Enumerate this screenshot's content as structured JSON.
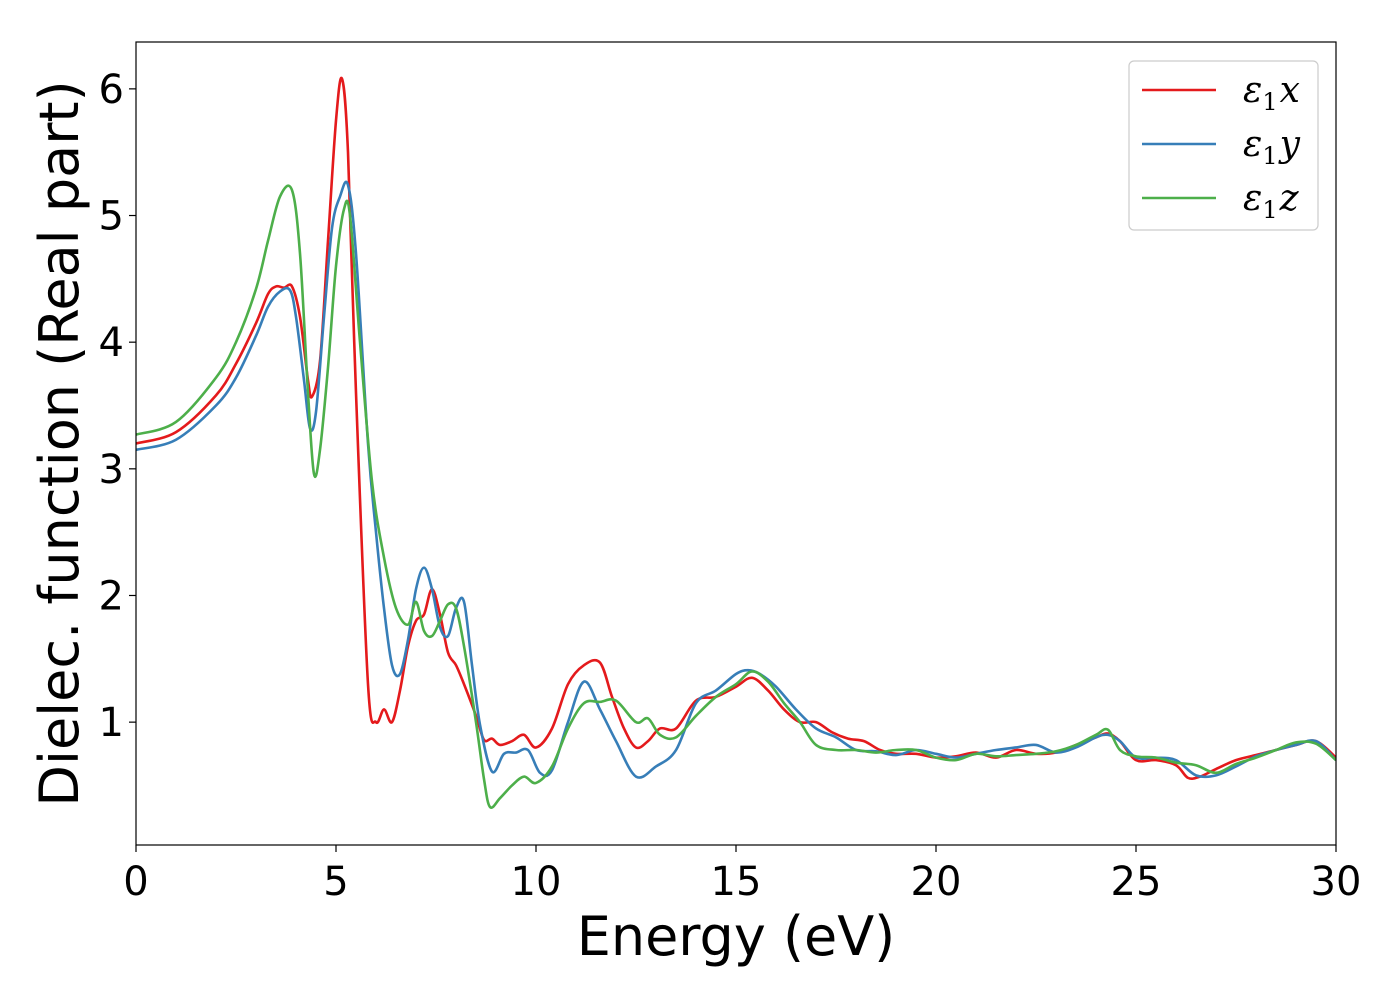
{
  "chart_data": {
    "type": "line",
    "title": "",
    "xlabel": "Energy (eV)",
    "ylabel": "Dielec. function (Real part)",
    "xlim": [
      0,
      30
    ],
    "ylim": [
      0.03,
      6.37
    ],
    "xticks": [
      0,
      5,
      10,
      15,
      20,
      25,
      30
    ],
    "yticks": [
      1,
      2,
      3,
      4,
      5,
      6
    ],
    "grid": false,
    "legend_position": "top-right",
    "series": [
      {
        "name": "ε₁x",
        "legend_base": "ε",
        "legend_sub": "1",
        "legend_var": "x",
        "color": "#e41a1c",
        "x": [
          0,
          1,
          2,
          2.5,
          3,
          3.3,
          3.5,
          3.7,
          3.9,
          4.1,
          4.3,
          4.4,
          4.6,
          4.8,
          5.0,
          5.15,
          5.3,
          5.5,
          5.8,
          6.0,
          6.2,
          6.4,
          6.6,
          6.8,
          7.0,
          7.2,
          7.4,
          7.6,
          7.8,
          8.0,
          8.2,
          8.5,
          8.7,
          8.9,
          9.1,
          9.4,
          9.7,
          10.0,
          10.4,
          10.8,
          11.2,
          11.6,
          11.9,
          12.2,
          12.5,
          12.8,
          13.1,
          13.5,
          14.0,
          14.5,
          15.0,
          15.4,
          15.8,
          16.2,
          16.6,
          17.0,
          17.4,
          17.8,
          18.2,
          18.6,
          19.0,
          19.5,
          20.0,
          20.5,
          21.0,
          21.5,
          22.0,
          22.5,
          23.0,
          23.5,
          24.0,
          24.3,
          24.6,
          25.0,
          25.5,
          26.0,
          26.3,
          26.6,
          27.0,
          27.5,
          28.0,
          28.5,
          29.0,
          29.5,
          30.0
        ],
        "y": [
          3.2,
          3.29,
          3.58,
          3.83,
          4.15,
          4.38,
          4.44,
          4.43,
          4.44,
          4.2,
          3.7,
          3.57,
          3.85,
          4.8,
          5.75,
          6.08,
          5.5,
          3.6,
          1.3,
          1.0,
          1.1,
          1.0,
          1.25,
          1.6,
          1.8,
          1.85,
          2.05,
          1.85,
          1.55,
          1.45,
          1.3,
          1.05,
          0.86,
          0.87,
          0.82,
          0.85,
          0.9,
          0.8,
          0.95,
          1.3,
          1.45,
          1.47,
          1.2,
          0.95,
          0.8,
          0.85,
          0.95,
          0.95,
          1.17,
          1.2,
          1.28,
          1.35,
          1.25,
          1.1,
          1.0,
          1.0,
          0.92,
          0.87,
          0.85,
          0.78,
          0.75,
          0.75,
          0.72,
          0.73,
          0.76,
          0.72,
          0.78,
          0.75,
          0.76,
          0.82,
          0.88,
          0.91,
          0.85,
          0.7,
          0.7,
          0.66,
          0.56,
          0.57,
          0.63,
          0.7,
          0.74,
          0.78,
          0.82,
          0.85,
          0.72
        ]
      },
      {
        "name": "ε₁y",
        "legend_base": "ε",
        "legend_sub": "1",
        "legend_var": "y",
        "color": "#377eb8",
        "x": [
          0,
          1,
          2,
          2.5,
          3,
          3.3,
          3.6,
          3.85,
          4.0,
          4.2,
          4.35,
          4.5,
          4.7,
          4.9,
          5.1,
          5.3,
          5.5,
          5.8,
          6.0,
          6.2,
          6.4,
          6.6,
          6.8,
          7.0,
          7.2,
          7.4,
          7.6,
          7.8,
          8.0,
          8.2,
          8.4,
          8.6,
          8.9,
          9.2,
          9.5,
          9.8,
          10.1,
          10.4,
          10.8,
          11.2,
          11.6,
          12.0,
          12.5,
          13.0,
          13.5,
          14.0,
          14.5,
          15.0,
          15.3,
          15.6,
          16.0,
          16.5,
          17.0,
          17.5,
          18.0,
          18.5,
          19.0,
          19.5,
          20.0,
          20.5,
          21.0,
          21.5,
          22.0,
          22.5,
          23.0,
          23.5,
          24.0,
          24.3,
          24.6,
          25.0,
          25.5,
          26.0,
          26.5,
          27.0,
          27.5,
          28.0,
          28.5,
          29.0,
          29.5,
          30.0
        ],
        "y": [
          3.15,
          3.23,
          3.5,
          3.72,
          4.05,
          4.28,
          4.4,
          4.41,
          4.2,
          3.7,
          3.32,
          3.45,
          4.2,
          4.9,
          5.15,
          5.24,
          4.7,
          3.2,
          2.5,
          1.9,
          1.45,
          1.38,
          1.65,
          2.05,
          2.22,
          2.05,
          1.75,
          1.68,
          1.9,
          1.95,
          1.45,
          0.98,
          0.61,
          0.75,
          0.76,
          0.78,
          0.6,
          0.62,
          1.0,
          1.32,
          1.1,
          0.85,
          0.57,
          0.65,
          0.78,
          1.15,
          1.25,
          1.38,
          1.41,
          1.38,
          1.28,
          1.1,
          0.95,
          0.88,
          0.78,
          0.77,
          0.74,
          0.78,
          0.75,
          0.72,
          0.75,
          0.78,
          0.8,
          0.82,
          0.76,
          0.8,
          0.88,
          0.9,
          0.85,
          0.72,
          0.72,
          0.7,
          0.58,
          0.58,
          0.65,
          0.73,
          0.78,
          0.82,
          0.85,
          0.7
        ]
      },
      {
        "name": "ε₁z",
        "legend_base": "ε",
        "legend_sub": "1",
        "legend_var": "z",
        "color": "#4daf4a",
        "x": [
          0,
          1,
          2,
          2.5,
          3,
          3.3,
          3.6,
          3.9,
          4.1,
          4.3,
          4.45,
          4.6,
          4.8,
          5.0,
          5.2,
          5.35,
          5.6,
          5.9,
          6.2,
          6.5,
          6.8,
          7.0,
          7.2,
          7.4,
          7.6,
          7.8,
          8.0,
          8.2,
          8.5,
          8.7,
          8.85,
          9.1,
          9.4,
          9.7,
          10.0,
          10.4,
          10.8,
          11.2,
          11.6,
          12.0,
          12.5,
          12.8,
          13.1,
          13.5,
          14.0,
          14.5,
          15.0,
          15.4,
          15.8,
          16.2,
          16.6,
          17.0,
          17.5,
          18.0,
          18.5,
          19.0,
          19.5,
          20.0,
          20.5,
          21.0,
          21.5,
          22.0,
          22.5,
          23.0,
          23.5,
          24.0,
          24.3,
          24.6,
          25.0,
          25.5,
          26.0,
          26.5,
          27.0,
          27.5,
          28.0,
          28.5,
          29.0,
          29.5,
          30.0
        ],
        "y": [
          3.27,
          3.37,
          3.72,
          4.0,
          4.42,
          4.8,
          5.15,
          5.2,
          4.7,
          3.6,
          2.96,
          3.15,
          3.8,
          4.6,
          5.05,
          5.0,
          4.0,
          2.9,
          2.3,
          1.9,
          1.77,
          1.95,
          1.72,
          1.68,
          1.8,
          1.93,
          1.9,
          1.6,
          1.0,
          0.55,
          0.33,
          0.4,
          0.5,
          0.57,
          0.52,
          0.65,
          0.95,
          1.15,
          1.16,
          1.17,
          1.0,
          1.03,
          0.9,
          0.88,
          1.05,
          1.2,
          1.3,
          1.4,
          1.32,
          1.15,
          1.0,
          0.82,
          0.78,
          0.78,
          0.76,
          0.78,
          0.78,
          0.72,
          0.7,
          0.75,
          0.73,
          0.74,
          0.75,
          0.77,
          0.82,
          0.9,
          0.94,
          0.78,
          0.73,
          0.72,
          0.68,
          0.66,
          0.6,
          0.67,
          0.72,
          0.78,
          0.84,
          0.83,
          0.7
        ]
      }
    ]
  }
}
